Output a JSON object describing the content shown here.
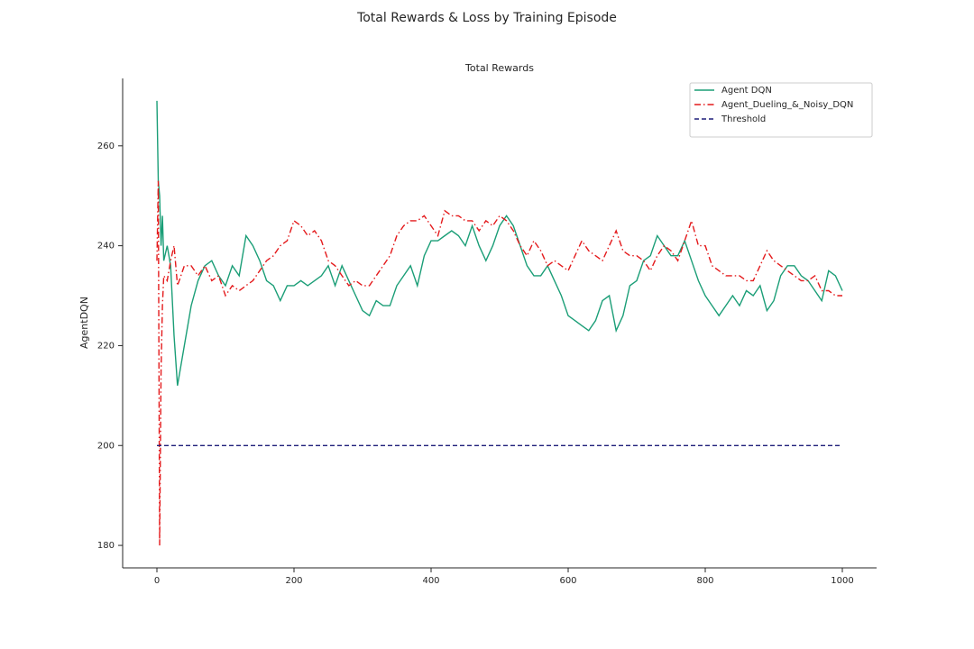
{
  "chart_data": {
    "type": "line",
    "suptitle": "Total Rewards & Loss by Training Episode",
    "title": "Total Rewards",
    "y_label": "AgentDQN",
    "x": [
      0,
      2,
      4,
      6,
      8,
      10,
      15,
      20,
      25,
      30,
      35,
      40,
      50,
      60,
      70,
      80,
      90,
      100,
      110,
      120,
      130,
      140,
      150,
      160,
      170,
      180,
      190,
      200,
      210,
      220,
      230,
      240,
      250,
      260,
      270,
      280,
      290,
      300,
      310,
      320,
      330,
      340,
      350,
      360,
      370,
      380,
      390,
      400,
      410,
      420,
      430,
      440,
      450,
      460,
      470,
      480,
      490,
      500,
      510,
      520,
      530,
      540,
      550,
      560,
      570,
      580,
      590,
      600,
      610,
      620,
      630,
      640,
      650,
      660,
      670,
      680,
      690,
      700,
      710,
      720,
      730,
      740,
      750,
      760,
      770,
      780,
      790,
      800,
      810,
      820,
      830,
      840,
      850,
      860,
      870,
      880,
      890,
      900,
      910,
      920,
      930,
      940,
      950,
      960,
      970,
      980,
      990,
      1000
    ],
    "series": [
      {
        "name": "Agent DQN",
        "color": "#1b9e77",
        "dash": "solid",
        "values": [
          269,
          253,
          250,
          240,
          246,
          237,
          240,
          236,
          222,
          212,
          216,
          220,
          228,
          233,
          236,
          237,
          234,
          232,
          236,
          234,
          242,
          240,
          237,
          233,
          232,
          229,
          232,
          232,
          233,
          232,
          233,
          234,
          236,
          232,
          236,
          233,
          230,
          227,
          226,
          229,
          228,
          228,
          232,
          234,
          236,
          232,
          238,
          241,
          241,
          242,
          243,
          242,
          240,
          244,
          240,
          237,
          240,
          244,
          246,
          244,
          240,
          236,
          234,
          234,
          236,
          233,
          230,
          226,
          225,
          224,
          223,
          225,
          229,
          230,
          223,
          226,
          232,
          233,
          237,
          238,
          242,
          240,
          238,
          238,
          241,
          237,
          233,
          230,
          228,
          226,
          228,
          230,
          228,
          231,
          230,
          232,
          227,
          229,
          234,
          236,
          236,
          234,
          233,
          231,
          229,
          235,
          234,
          231
        ]
      },
      {
        "name": "Agent_Dueling_&_Noisy_DQN",
        "color": "#e41a1c",
        "dash": "dashdot",
        "values": [
          237,
          253,
          180,
          215,
          228,
          234,
          233,
          237,
          240,
          232,
          234,
          236,
          236,
          234,
          236,
          233,
          234,
          230,
          232,
          231,
          232,
          233,
          235,
          237,
          238,
          240,
          241,
          245,
          244,
          242,
          243,
          241,
          237,
          236,
          234,
          232,
          233,
          232,
          232,
          234,
          236,
          238,
          242,
          244,
          245,
          245,
          246,
          244,
          242,
          247,
          246,
          246,
          245,
          245,
          243,
          245,
          244,
          246,
          245,
          243,
          240,
          238,
          241,
          239,
          236,
          237,
          236,
          235,
          238,
          241,
          239,
          238,
          237,
          240,
          243,
          239,
          238,
          238,
          237,
          235,
          238,
          240,
          239,
          237,
          241,
          245,
          240,
          240,
          236,
          235,
          234,
          234,
          234,
          233,
          233,
          236,
          239,
          237,
          236,
          235,
          234,
          233,
          233,
          234,
          231,
          231,
          230,
          230
        ]
      },
      {
        "name": "Threshold",
        "color": "#1f1f7a",
        "dash": "dashed",
        "x": [
          0,
          1000
        ],
        "values": [
          200,
          200
        ]
      }
    ],
    "xlim": [
      -50,
      1050
    ],
    "ylim": [
      175.5,
      273.5
    ],
    "xticks": [
      0,
      200,
      400,
      600,
      800,
      1000
    ],
    "yticks": [
      180,
      200,
      220,
      240,
      260
    ],
    "grid": false,
    "legend": "upper right"
  }
}
